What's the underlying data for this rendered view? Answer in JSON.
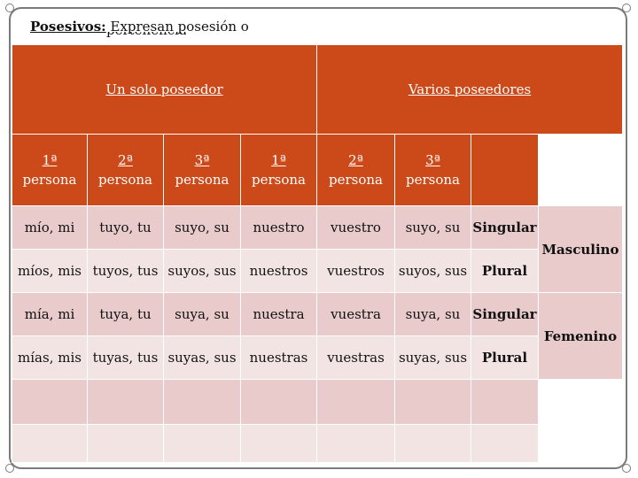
{
  "title": {
    "label": "Posesivos:",
    "text": "Expresan posesión o",
    "overflow": "pertenencia"
  },
  "headers": {
    "single": "Un solo poseedor",
    "multiple": "Varios poseedores",
    "persons": [
      {
        "ord": "1ª",
        "word": "persona"
      },
      {
        "ord": "2ª",
        "word": "persona"
      },
      {
        "ord": "3ª",
        "word": "persona"
      },
      {
        "ord": "1ª",
        "word": "persona"
      },
      {
        "ord": "2ª",
        "word": "persona"
      },
      {
        "ord": "3ª",
        "word": "persona"
      }
    ]
  },
  "rows": [
    {
      "cells": [
        "mío, mi",
        "tuyo, tu",
        "suyo, su",
        "nuestro",
        "vuestro",
        "suyo, su"
      ],
      "number": "Singular"
    },
    {
      "cells": [
        "míos, mis",
        "tuyos, tus",
        "suyos, sus",
        "nuestros",
        "vuestros",
        "suyos, sus"
      ],
      "number": "Plural"
    },
    {
      "cells": [
        "mía, mi",
        "tuya, tu",
        "suya, su",
        "nuestra",
        "vuestra",
        "suya, su"
      ],
      "number": "Singular"
    },
    {
      "cells": [
        "mías, mis",
        "tuyas, tus",
        "suyas, sus",
        "nuestras",
        "vuestras",
        "suyas, sus"
      ],
      "number": "Plural"
    }
  ],
  "genders": [
    "Masculino",
    "Femenino"
  ],
  "colors": {
    "header": "#cc4a1a",
    "row_dark": "#e9cbcb",
    "row_light": "#f3e4e4"
  }
}
